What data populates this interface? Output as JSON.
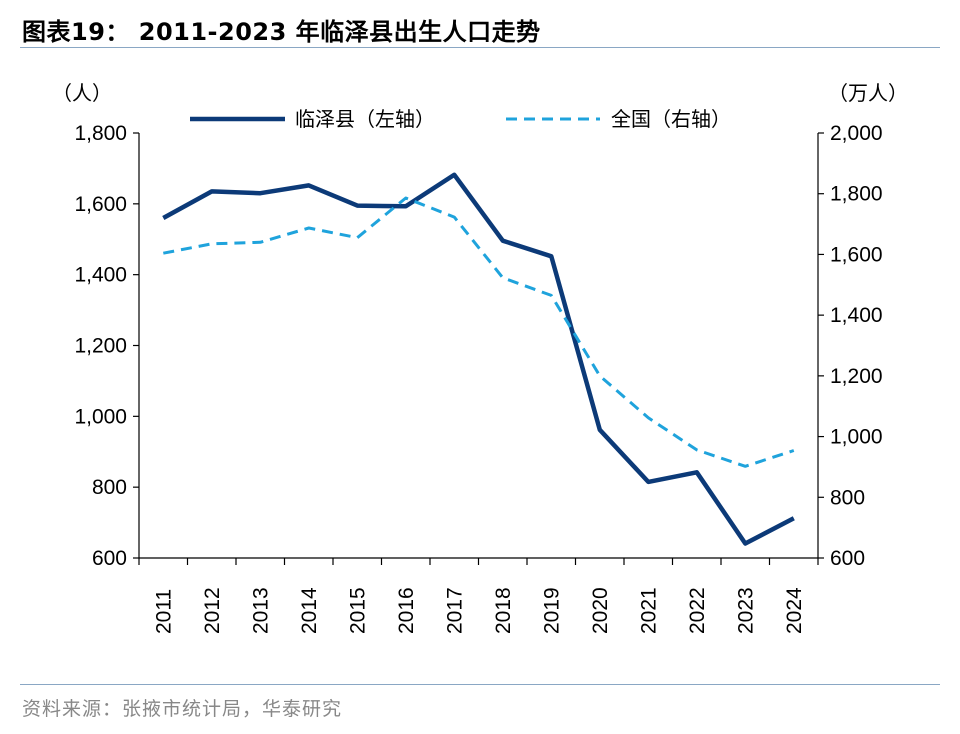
{
  "header": {
    "title": "图表19： 2011-2023 年临泽县出生人口走势"
  },
  "footer": {
    "source": "资料来源：张掖市统计局，华泰研究"
  },
  "chart_data": {
    "type": "line",
    "title": "",
    "categories": [
      "2011",
      "2012",
      "2013",
      "2014",
      "2015",
      "2016",
      "2017",
      "2018",
      "2019",
      "2020",
      "2021",
      "2022",
      "2023",
      "2024"
    ],
    "left_axis": {
      "unit": "（人）",
      "ylim": [
        600,
        1800
      ],
      "ticks": [
        "1,800",
        "1,600",
        "1,400",
        "1,200",
        "1,000",
        "800",
        "600"
      ],
      "tick_values": [
        1800,
        1600,
        1400,
        1200,
        1000,
        800,
        600
      ]
    },
    "right_axis": {
      "unit": "（万人）",
      "ylim": [
        600,
        2000
      ],
      "ticks": [
        "2,000",
        "1,800",
        "1,600",
        "1,400",
        "1,200",
        "1,000",
        "800",
        "600"
      ],
      "tick_values": [
        2000,
        1800,
        1600,
        1400,
        1200,
        1000,
        800,
        600
      ]
    },
    "series": [
      {
        "name": "临泽县（左轴）",
        "axis": "left",
        "color": "#0c3a78",
        "style": "solid",
        "values": [
          1560,
          1635,
          1630,
          1652,
          1595,
          1593,
          1682,
          1496,
          1452,
          962,
          815,
          842,
          641,
          712
        ]
      },
      {
        "name": "全国（右轴）",
        "axis": "right",
        "color": "#1fa3dc",
        "style": "dashed",
        "values": [
          1604,
          1635,
          1640,
          1687,
          1655,
          1786,
          1723,
          1523,
          1465,
          1200,
          1062,
          956,
          902,
          954
        ]
      }
    ],
    "legend": "top",
    "grid": false
  }
}
